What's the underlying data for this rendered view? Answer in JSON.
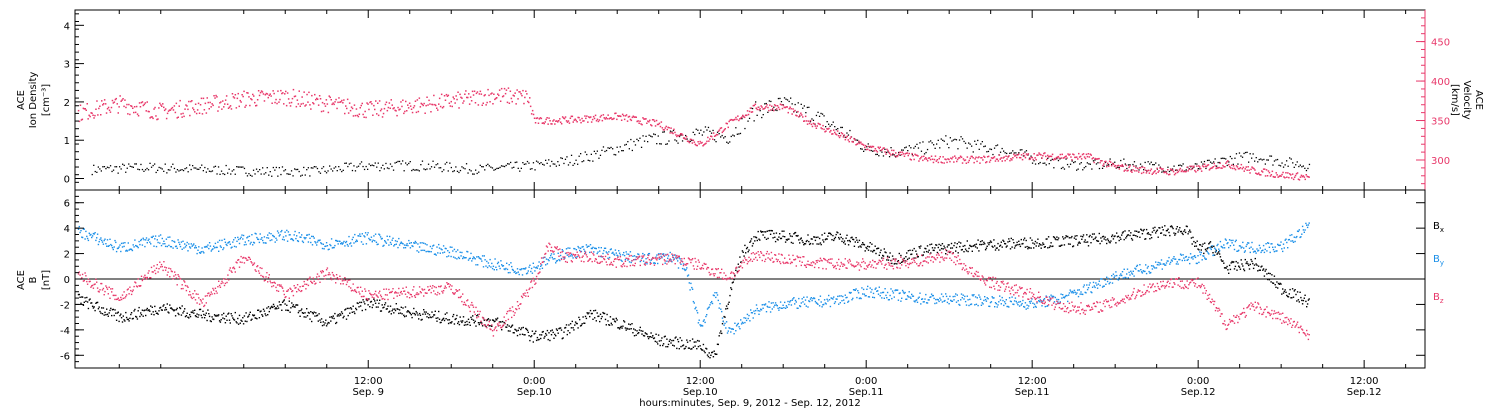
{
  "chart_data": {
    "type": "scatter",
    "x_axis": {
      "title": "hours:minutes, Sep.  9, 2012 - Sep. 12, 2012",
      "range_hours": [
        -9.2,
        88.4
      ],
      "ticks": [
        {
          "hours": 12,
          "label_time": "12:00",
          "label_day": "Sep. 9"
        },
        {
          "hours": 24,
          "label_time": "0:00",
          "label_day": "Sep.10"
        },
        {
          "hours": 36,
          "label_time": "12:00",
          "label_day": "Sep.10"
        },
        {
          "hours": 48,
          "label_time": "0:00",
          "label_day": "Sep.11"
        },
        {
          "hours": 60,
          "label_time": "12:00",
          "label_day": "Sep.11"
        },
        {
          "hours": 72,
          "label_time": "0:00",
          "label_day": "Sep.12"
        },
        {
          "hours": 84,
          "label_time": "12:00",
          "label_day": "Sep.12"
        }
      ]
    },
    "panels": [
      {
        "id": "plasma",
        "left_axis": {
          "title_lines": [
            "ACE",
            "Ion Density",
            "[cm⁻³]"
          ],
          "range": [
            -0.3,
            4.4
          ],
          "ticks": [
            "0",
            "1",
            "2",
            "3",
            "4"
          ],
          "tick_values": [
            0,
            1,
            2,
            3,
            4
          ]
        },
        "right_axis": {
          "title_lines": [
            "ACE",
            "Velocity",
            "[km/s]"
          ],
          "range": [
            262,
            490
          ],
          "ticks": [
            "300",
            "350",
            "400",
            "450"
          ],
          "tick_values": [
            300,
            350,
            400,
            450
          ],
          "color": "#e8386a"
        },
        "series": [
          {
            "id": "density",
            "axis": "left",
            "color": "#000000",
            "x_hours": [
              -8,
              -4,
              0,
              4,
              8,
              12,
              16,
              20,
              22,
              24,
              26,
              28,
              30,
              32,
              34,
              36,
              38,
              40,
              42,
              44,
              46,
              48,
              50,
              52,
              54,
              56,
              58,
              60,
              62,
              64,
              66,
              68,
              70,
              72,
              74,
              76,
              78,
              80
            ],
            "y": [
              0.25,
              0.3,
              0.25,
              0.2,
              0.2,
              0.35,
              0.35,
              0.25,
              0.3,
              0.35,
              0.45,
              0.6,
              0.8,
              1.0,
              1.1,
              1.2,
              1.1,
              1.8,
              1.95,
              1.7,
              1.3,
              0.8,
              0.7,
              0.8,
              1.0,
              0.85,
              0.75,
              0.55,
              0.4,
              0.35,
              0.4,
              0.35,
              0.3,
              0.3,
              0.5,
              0.6,
              0.45,
              0.35
            ]
          },
          {
            "id": "velocity",
            "axis": "right",
            "color": "#e8386a",
            "x_hours": [
              -9,
              -6,
              -3,
              0,
              3,
              6,
              9,
              12,
              15,
              18,
              21,
              23.5,
              24,
              27,
              30,
              33,
              36,
              38,
              40,
              42,
              44,
              48,
              52,
              56,
              60,
              64,
              66,
              68,
              70,
              72,
              74,
              76,
              78,
              80
            ],
            "y": [
              360,
              372,
              362,
              370,
              378,
              381,
              372,
              364,
              369,
              375,
              383,
              380,
              350,
              352,
              356,
              346,
              320,
              346,
              368,
              368,
              348,
              317,
              302,
              301,
              306,
              305,
              292,
              288,
              286,
              290,
              296,
              287,
              282,
              279
            ]
          }
        ]
      },
      {
        "id": "magnetic",
        "left_axis": {
          "title_lines": [
            "ACE",
            "B",
            "[nT]"
          ],
          "range": [
            -7,
            7
          ],
          "ticks": [
            "-6",
            "-4",
            "-2",
            "0",
            "2",
            "4",
            "6"
          ],
          "tick_values": [
            -6,
            -4,
            -2,
            0,
            2,
            4,
            6
          ]
        },
        "legend": [
          {
            "label": "B",
            "sub": "x",
            "color": "#000000"
          },
          {
            "label": "B",
            "sub": "y",
            "color": "#1a8fe8"
          },
          {
            "label": "B",
            "sub": "z",
            "color": "#e8386a"
          }
        ],
        "series": [
          {
            "id": "Bx",
            "color": "#000000",
            "x_hours": [
              -9,
              -6,
              -3,
              0,
              3,
              6,
              9,
              12,
              15,
              18,
              21,
              24,
              26,
              28,
              30,
              33,
              36,
              37,
              38,
              39,
              40,
              42,
              44,
              46,
              48,
              50,
              52,
              56,
              60,
              64,
              68,
              71,
              72,
              73,
              74,
              76,
              78,
              80
            ],
            "y": [
              -1.5,
              -3.0,
              -2.2,
              -2.8,
              -3.1,
              -2.0,
              -3.4,
              -1.8,
              -2.6,
              -3.1,
              -3.3,
              -4.5,
              -4.2,
              -2.7,
              -3.4,
              -4.8,
              -5.2,
              -6.1,
              -1.5,
              2.0,
              3.5,
              3.4,
              3.1,
              3.4,
              2.6,
              1.6,
              2.3,
              2.7,
              2.9,
              3.1,
              3.6,
              4.0,
              2.4,
              2.6,
              0.9,
              1.3,
              -0.7,
              -1.8
            ]
          },
          {
            "id": "By",
            "color": "#1a8fe8",
            "x_hours": [
              -9,
              -6,
              -3,
              0,
              3,
              6,
              9,
              12,
              15,
              18,
              21,
              23,
              24,
              26,
              28,
              30,
              32,
              34,
              35,
              36,
              37,
              38,
              40,
              42,
              44,
              46,
              48,
              52,
              56,
              60,
              62,
              64,
              66,
              68,
              70,
              72,
              74,
              76,
              78,
              80
            ],
            "y": [
              3.8,
              2.5,
              3.1,
              2.4,
              3.1,
              3.5,
              2.8,
              3.3,
              2.6,
              2.2,
              1.2,
              0.8,
              1.0,
              2.0,
              2.4,
              1.9,
              1.6,
              1.8,
              0.6,
              -3.8,
              -1.0,
              -4.2,
              -2.4,
              -1.9,
              -1.8,
              -1.6,
              -0.9,
              -1.5,
              -1.6,
              -1.9,
              -1.5,
              -0.7,
              0.3,
              0.8,
              1.5,
              1.7,
              2.8,
              2.5,
              2.6,
              4.2
            ]
          },
          {
            "id": "Bz",
            "color": "#e8386a",
            "x_hours": [
              -9,
              -6,
              -3,
              0,
              3,
              6,
              9,
              12,
              15,
              18,
              21,
              23,
              24,
              25,
              26,
              28,
              30,
              32,
              34,
              36,
              38,
              40,
              42,
              44,
              46,
              48,
              50,
              52,
              54,
              56,
              58,
              60,
              62,
              64,
              66,
              68,
              70,
              72,
              74,
              76,
              78,
              80
            ],
            "y": [
              0.4,
              -1.5,
              1.2,
              -1.9,
              1.7,
              -1.2,
              0.5,
              -1.3,
              -1.0,
              -0.6,
              -4.0,
              -1.8,
              0.0,
              2.8,
              1.8,
              1.8,
              1.4,
              1.5,
              1.7,
              1.1,
              0.2,
              2.0,
              1.6,
              1.3,
              1.2,
              1.2,
              1.3,
              1.5,
              2.0,
              0.2,
              -0.6,
              -1.2,
              -2.1,
              -2.3,
              -1.8,
              -0.8,
              -0.2,
              -0.3,
              -3.5,
              -2.1,
              -3.0,
              -4.3
            ]
          }
        ]
      }
    ]
  }
}
